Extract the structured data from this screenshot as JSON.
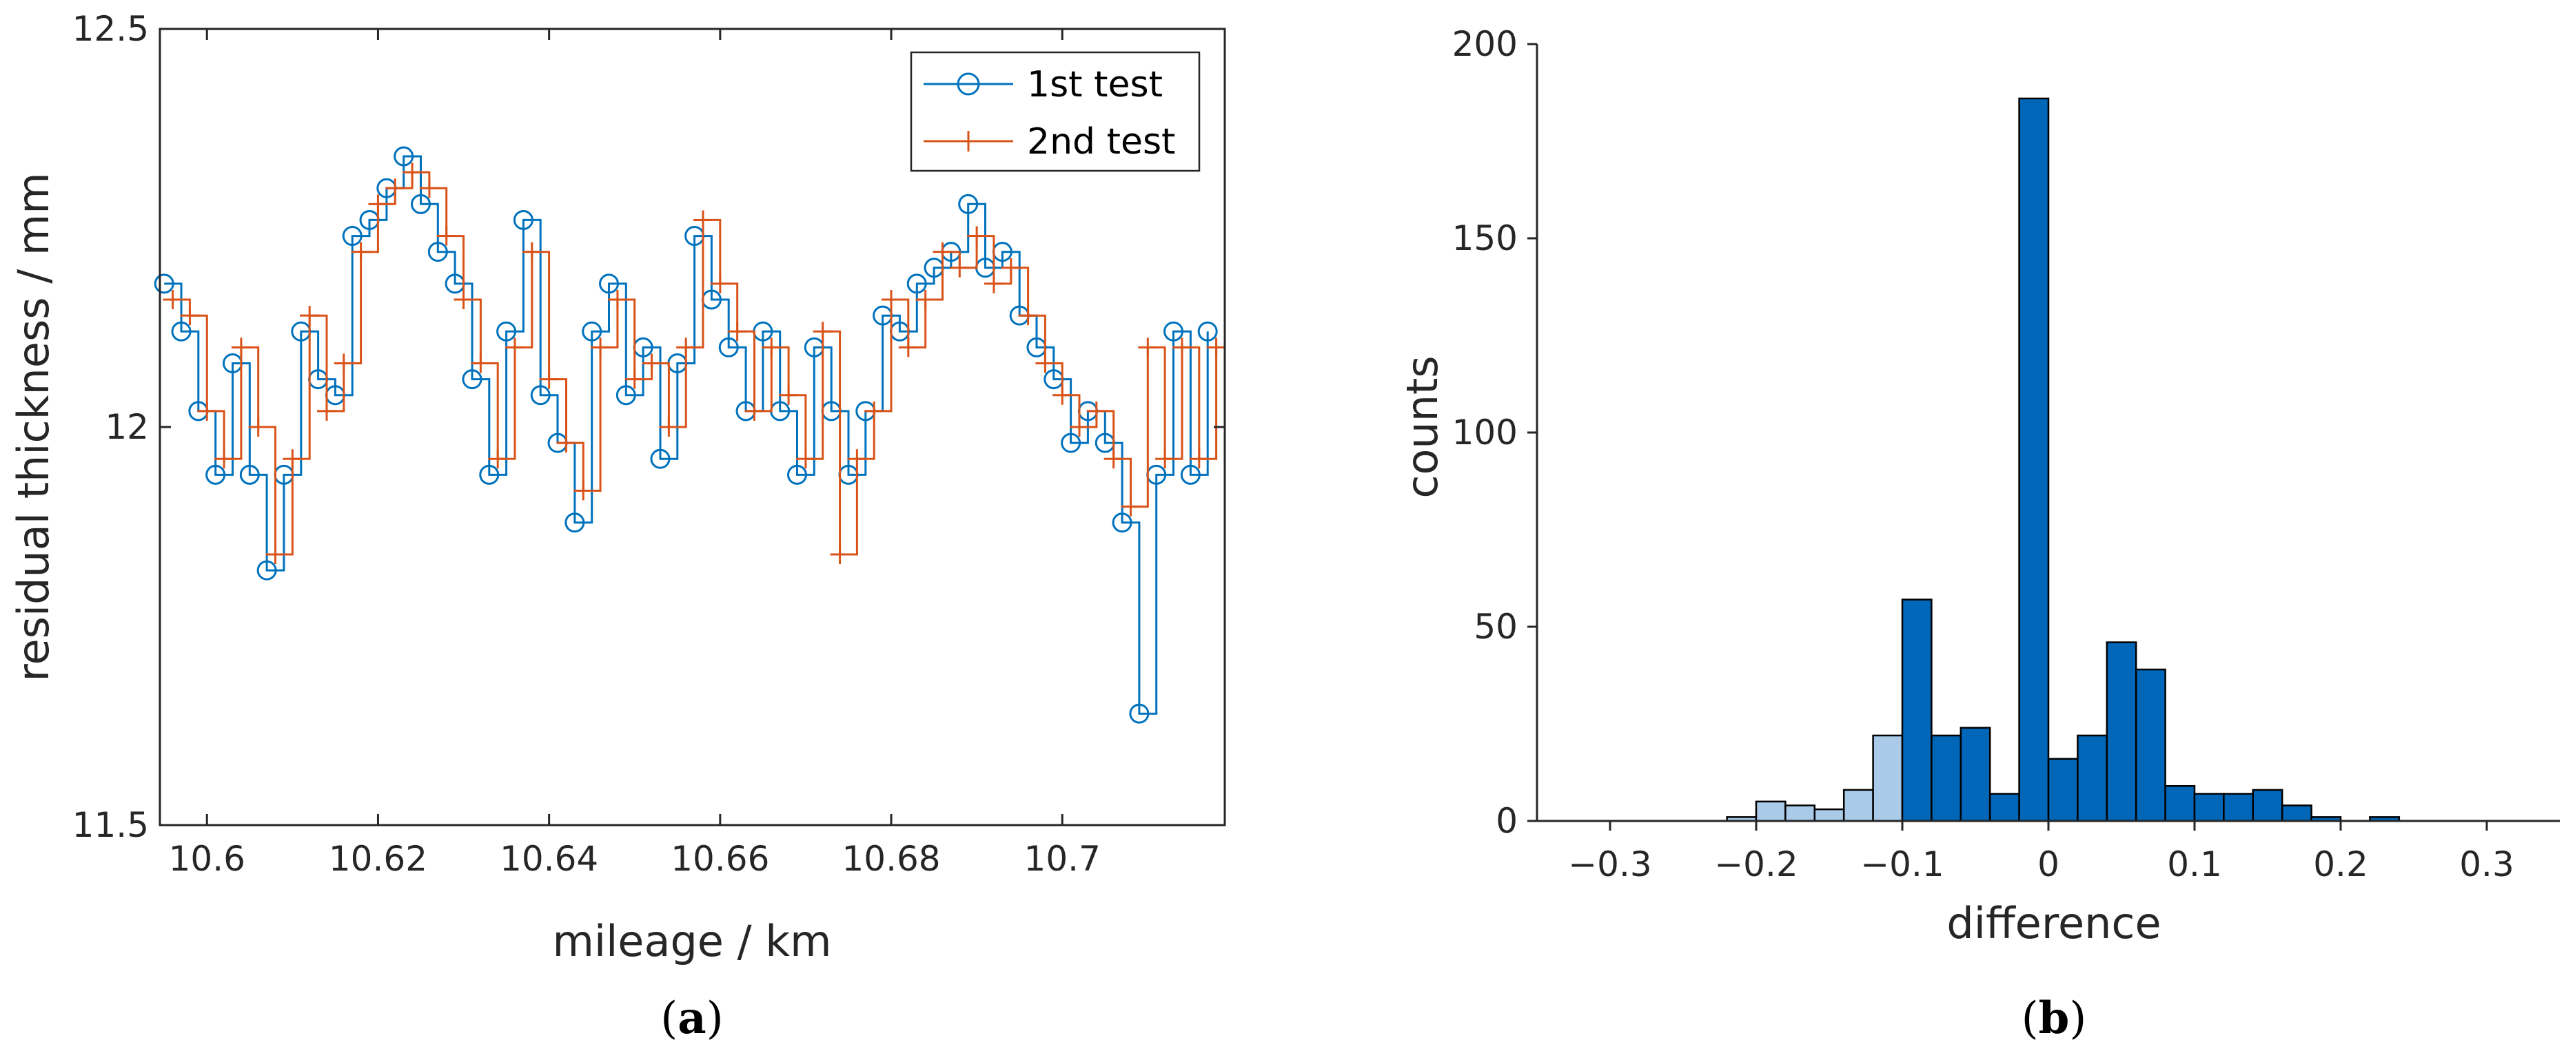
{
  "colors": {
    "series1": "#0072BD",
    "series2": "#D95319",
    "hist_dark": "#0066B8",
    "hist_light": "#A9CBE9",
    "axis": "#262626"
  },
  "chart_data": [
    {
      "type": "line",
      "panel_label": "a",
      "xlabel": "mileage / km",
      "ylabel": "residual thickness / mm",
      "xlim": [
        10.5945,
        10.719
      ],
      "ylim": [
        11.5,
        12.5
      ],
      "xticks": [
        10.6,
        10.62,
        10.64,
        10.66,
        10.68,
        10.7
      ],
      "xtick_labels": [
        "10.6",
        "10.62",
        "10.64",
        "10.66",
        "10.68",
        "10.7"
      ],
      "yticks": [
        11.5,
        12,
        12.5
      ],
      "ytick_labels": [
        "11.5",
        "12",
        "12.5"
      ],
      "legend": [
        "1st test",
        "2nd test"
      ],
      "legend_position": "top-right",
      "levels": [
        11.64,
        11.82,
        11.88,
        11.94,
        11.96,
        11.98,
        12.02,
        12.04,
        12.06,
        12.08,
        12.1,
        12.12,
        12.14,
        12.16,
        12.18,
        12.2,
        12.22,
        12.24,
        12.26,
        12.28,
        12.3,
        12.32,
        12.34
      ],
      "series": [
        {
          "name": "1st test",
          "marker": "circle",
          "x": [
            10.595,
            10.597,
            10.599,
            10.601,
            10.603,
            10.605,
            10.607,
            10.609,
            10.611,
            10.613,
            10.615,
            10.617,
            10.619,
            10.621,
            10.623,
            10.625,
            10.627,
            10.629,
            10.631,
            10.633,
            10.635,
            10.637,
            10.639,
            10.641,
            10.643,
            10.645,
            10.647,
            10.649,
            10.651,
            10.653,
            10.655,
            10.657,
            10.659,
            10.661,
            10.663,
            10.665,
            10.667,
            10.669,
            10.671,
            10.673,
            10.675,
            10.677,
            10.679,
            10.681,
            10.683,
            10.685,
            10.687,
            10.689,
            10.691,
            10.693,
            10.695,
            10.697,
            10.699,
            10.701,
            10.703,
            10.705,
            10.707,
            10.709,
            10.711,
            10.713,
            10.715,
            10.717
          ],
          "y": [
            12.18,
            12.12,
            12.02,
            11.94,
            12.08,
            11.94,
            11.82,
            11.94,
            12.12,
            12.06,
            12.04,
            12.24,
            12.26,
            12.3,
            12.34,
            12.28,
            12.22,
            12.18,
            12.06,
            11.94,
            12.12,
            12.26,
            12.04,
            11.98,
            11.88,
            12.12,
            12.18,
            12.04,
            12.1,
            11.96,
            12.08,
            12.24,
            12.16,
            12.1,
            12.02,
            12.12,
            12.02,
            11.94,
            12.1,
            12.02,
            11.94,
            12.02,
            12.14,
            12.12,
            12.18,
            12.2,
            12.22,
            12.28,
            12.2,
            12.22,
            12.14,
            12.1,
            12.06,
            11.98,
            12.02,
            11.98,
            11.88,
            11.64,
            11.94,
            12.12,
            11.94,
            12.12
          ]
        },
        {
          "name": "2nd test",
          "marker": "plus",
          "x": [
            10.596,
            10.598,
            10.6,
            10.602,
            10.604,
            10.606,
            10.608,
            10.61,
            10.612,
            10.614,
            10.616,
            10.618,
            10.62,
            10.622,
            10.624,
            10.626,
            10.628,
            10.63,
            10.632,
            10.634,
            10.636,
            10.638,
            10.64,
            10.642,
            10.644,
            10.646,
            10.648,
            10.65,
            10.652,
            10.654,
            10.656,
            10.658,
            10.66,
            10.662,
            10.664,
            10.666,
            10.668,
            10.67,
            10.672,
            10.674,
            10.676,
            10.678,
            10.68,
            10.682,
            10.684,
            10.686,
            10.688,
            10.69,
            10.692,
            10.694,
            10.696,
            10.698,
            10.7,
            10.702,
            10.704,
            10.706,
            10.708,
            10.71,
            10.712,
            10.714,
            10.716,
            10.718
          ],
          "y": [
            12.16,
            12.14,
            12.02,
            11.96,
            12.1,
            12.0,
            11.84,
            11.96,
            12.14,
            12.02,
            12.08,
            12.22,
            12.28,
            12.3,
            12.32,
            12.3,
            12.24,
            12.16,
            12.08,
            11.96,
            12.1,
            12.22,
            12.06,
            11.98,
            11.92,
            12.1,
            12.16,
            12.06,
            12.08,
            12.0,
            12.1,
            12.26,
            12.18,
            12.12,
            12.02,
            12.1,
            12.04,
            11.96,
            12.12,
            11.84,
            11.96,
            12.02,
            12.16,
            12.1,
            12.16,
            12.22,
            12.2,
            12.24,
            12.18,
            12.2,
            12.14,
            12.08,
            12.04,
            12.0,
            12.02,
            11.96,
            11.9,
            12.1,
            11.96,
            12.1,
            11.96,
            12.1
          ]
        }
      ]
    },
    {
      "type": "bar",
      "panel_label": "b",
      "xlabel": "difference",
      "ylabel": "counts",
      "xlim": [
        -0.35,
        0.35
      ],
      "ylim": [
        0,
        200
      ],
      "xticks": [
        -0.3,
        -0.2,
        -0.1,
        0,
        0.1,
        0.2,
        0.3
      ],
      "xtick_labels": [
        "−0.3",
        "−0.2",
        "−0.1",
        "0",
        "0.1",
        "0.2",
        "0.3"
      ],
      "yticks": [
        0,
        50,
        100,
        150,
        200
      ],
      "ytick_labels": [
        "0",
        "50",
        "100",
        "150",
        "200"
      ],
      "bin_width": 0.02,
      "bins": [
        {
          "start": -0.22,
          "count": 1,
          "shade": "light"
        },
        {
          "start": -0.2,
          "count": 5,
          "shade": "light"
        },
        {
          "start": -0.18,
          "count": 4,
          "shade": "light"
        },
        {
          "start": -0.16,
          "count": 3,
          "shade": "light"
        },
        {
          "start": -0.14,
          "count": 8,
          "shade": "light"
        },
        {
          "start": -0.12,
          "count": 22,
          "shade": "light"
        },
        {
          "start": -0.1,
          "count": 57,
          "shade": "dark"
        },
        {
          "start": -0.08,
          "count": 22,
          "shade": "dark"
        },
        {
          "start": -0.06,
          "count": 24,
          "shade": "dark"
        },
        {
          "start": -0.04,
          "count": 7,
          "shade": "dark"
        },
        {
          "start": -0.02,
          "count": 186,
          "shade": "dark"
        },
        {
          "start": 0.0,
          "count": 16,
          "shade": "dark"
        },
        {
          "start": 0.02,
          "count": 22,
          "shade": "dark"
        },
        {
          "start": 0.04,
          "count": 46,
          "shade": "dark"
        },
        {
          "start": 0.06,
          "count": 39,
          "shade": "dark"
        },
        {
          "start": 0.08,
          "count": 9,
          "shade": "dark"
        },
        {
          "start": 0.1,
          "count": 7,
          "shade": "dark"
        },
        {
          "start": 0.12,
          "count": 7,
          "shade": "dark"
        },
        {
          "start": 0.14,
          "count": 8,
          "shade": "dark"
        },
        {
          "start": 0.16,
          "count": 4,
          "shade": "dark"
        },
        {
          "start": 0.18,
          "count": 1,
          "shade": "dark"
        },
        {
          "start": 0.2,
          "count": 0,
          "shade": "dark"
        },
        {
          "start": 0.22,
          "count": 1,
          "shade": "dark"
        },
        {
          "start": 0.24,
          "count": 0,
          "shade": "dark"
        }
      ]
    }
  ]
}
